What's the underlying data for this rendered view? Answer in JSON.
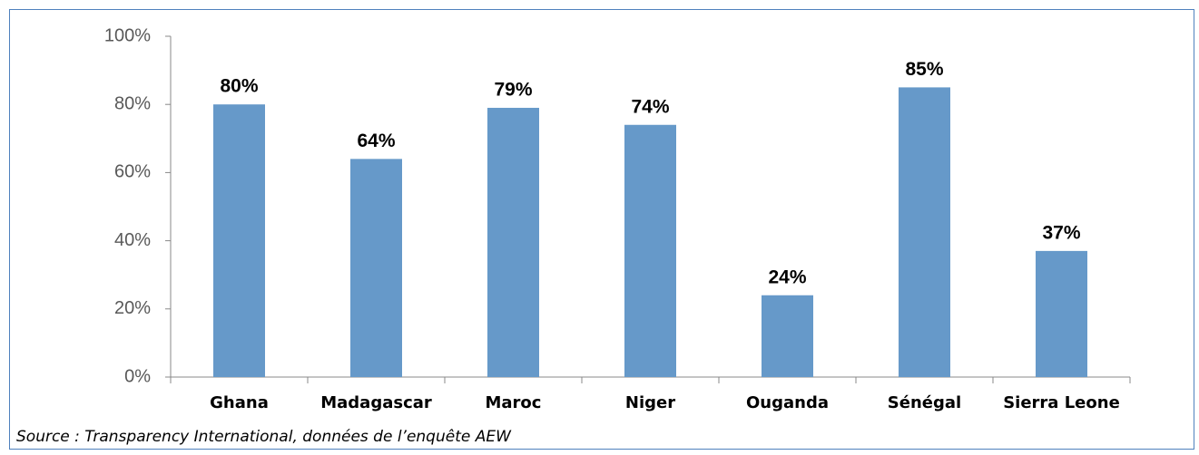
{
  "chart_data": {
    "type": "bar",
    "categories": [
      "Ghana",
      "Madagascar",
      "Maroc",
      "Niger",
      "Ouganda",
      "Sénégal",
      "Sierra Leone"
    ],
    "values": [
      80,
      64,
      79,
      74,
      24,
      85,
      37
    ],
    "value_labels": [
      "80%",
      "64%",
      "79%",
      "74%",
      "24%",
      "85%",
      "37%"
    ],
    "color": "#6699c9",
    "ylim": [
      0,
      100
    ],
    "yticks": [
      {
        "value": 0,
        "label": "0%"
      },
      {
        "value": 20,
        "label": "20%"
      },
      {
        "value": 40,
        "label": "40%"
      },
      {
        "value": 60,
        "label": "60%"
      },
      {
        "value": 80,
        "label": "80%"
      },
      {
        "value": 100,
        "label": "100%"
      }
    ],
    "grid": false,
    "source": "Source : Transparency International, données de l’enquête AEW"
  }
}
